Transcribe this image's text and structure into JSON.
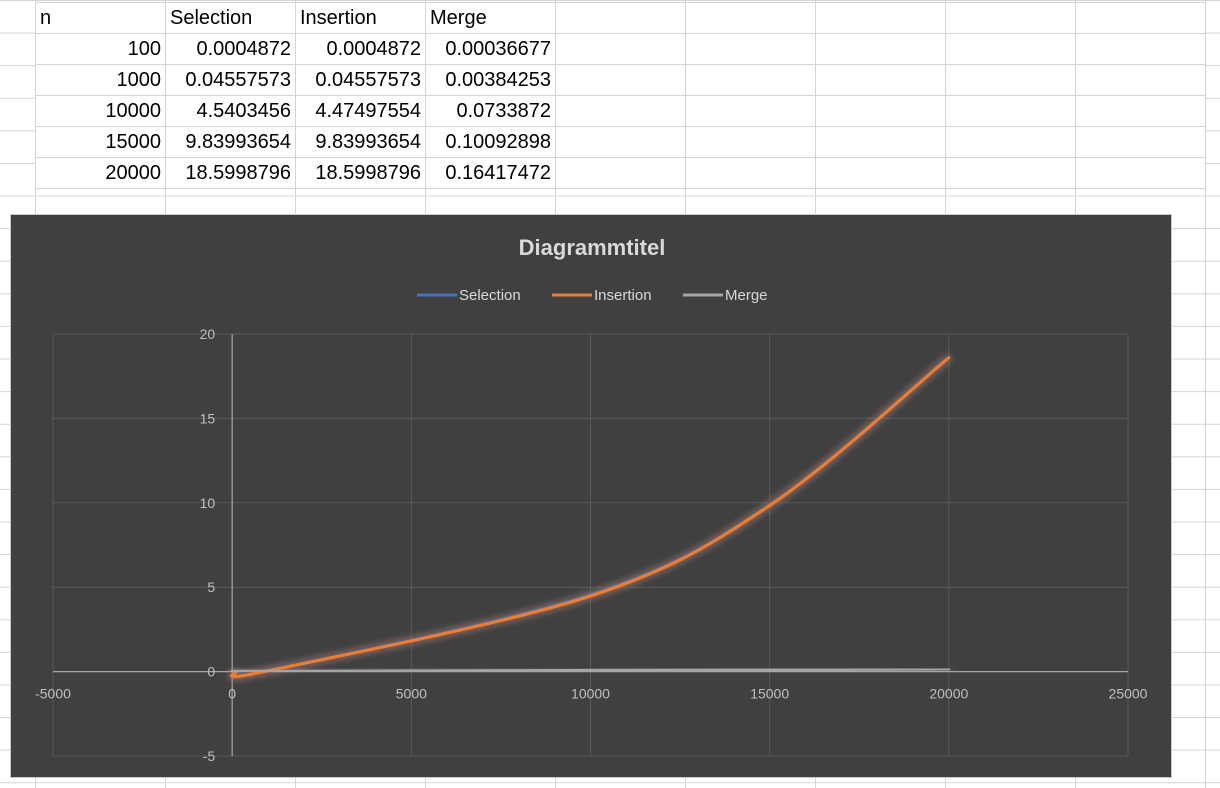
{
  "table": {
    "headers": [
      "n",
      "Selection",
      "Insertion",
      "Merge"
    ],
    "rows": [
      [
        "100",
        "0.0004872",
        "0.0004872",
        "0.00036677"
      ],
      [
        "1000",
        "0.04557573",
        "0.04557573",
        "0.00384253"
      ],
      [
        "10000",
        "4.5403456",
        "4.47497554",
        "0.0733872"
      ],
      [
        "15000",
        "9.83993654",
        "9.83993654",
        "0.10092898"
      ],
      [
        "20000",
        "18.5998796",
        "18.5998796",
        "0.16417472"
      ]
    ]
  },
  "chart_data": {
    "type": "scatter",
    "title": "Diagrammtitel",
    "xlim": [
      -5000,
      25000
    ],
    "ylim": [
      -5,
      20
    ],
    "x_ticks": [
      -5000,
      0,
      5000,
      10000,
      15000,
      20000,
      25000
    ],
    "y_ticks": [
      -5,
      0,
      5,
      10,
      15,
      20
    ],
    "grid": true,
    "legend_position": "top",
    "smooth_lines": true,
    "x": [
      100,
      1000,
      10000,
      15000,
      20000
    ],
    "series": [
      {
        "name": "Selection",
        "color": "#4472c4",
        "values": [
          0.0004872,
          0.04557573,
          4.5403456,
          9.83993654,
          18.5998796
        ]
      },
      {
        "name": "Insertion",
        "color": "#ed7d31",
        "values": [
          0.0004872,
          0.04557573,
          4.47497554,
          9.83993654,
          18.5998796
        ]
      },
      {
        "name": "Merge",
        "color": "#a5a5a5",
        "values": [
          0.00036677,
          0.00384253,
          0.0733872,
          0.10092898,
          0.16417472
        ]
      }
    ]
  },
  "colors": {
    "chart_background": "#404040",
    "gridline": "#595959",
    "axis_line": "#a6a6a6"
  }
}
